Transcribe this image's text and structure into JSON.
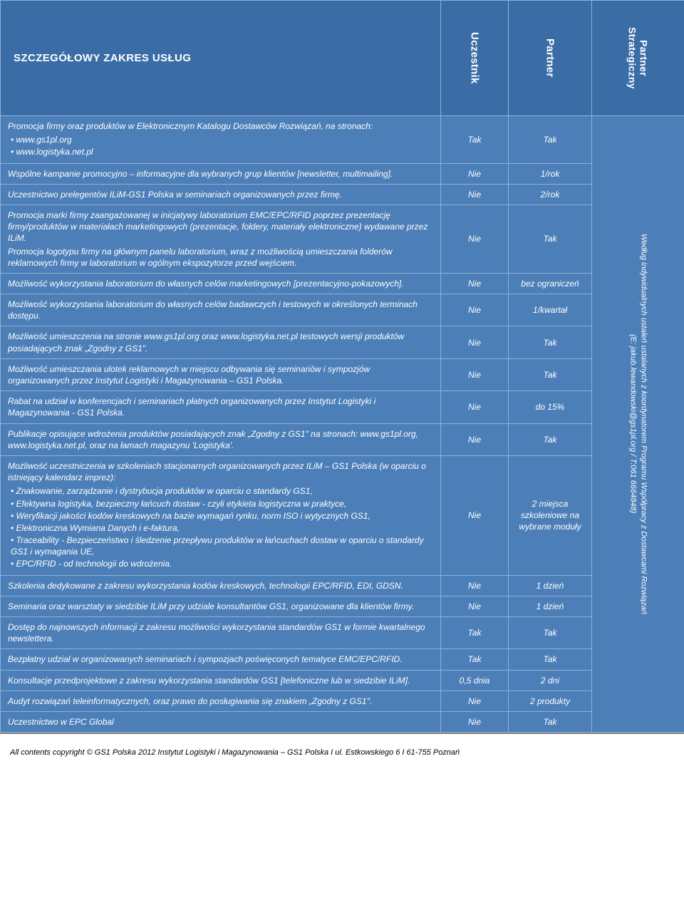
{
  "colors": {
    "header_bg": "#3a6da6",
    "body_bg": "#4c7fb8",
    "border": "#8fb1d2",
    "text": "#ffffff",
    "footer_text": "#000000"
  },
  "header": {
    "title": "SZCZEGÓŁOWY ZAKRES USŁUG",
    "col2": "Uczestnik",
    "col3": "Partner",
    "col4_l1": "Partner",
    "col4_l2": "Strategiczny"
  },
  "rows": [
    {
      "intro": "Promocja firmy oraz produktów w Elektronicznym Katalogu Dostawców Rozwiązań, na stronach:",
      "bullets": [
        "www.gs1pl.org",
        "www.logistyka.net.pl"
      ],
      "c2": "Tak",
      "c3": "Tak"
    },
    {
      "desc": "Wspólne kampanie promocyjno – informacyjne dla wybranych grup klientów [newsletter, multimailing].",
      "c2": "Nie",
      "c3": "1/rok"
    },
    {
      "desc": "Uczestnictwo prelegentów ILiM-GS1 Polska w seminariach organizowanych przez firmę.",
      "c2": "Nie",
      "c3": "2/rok"
    },
    {
      "desc": "Promocja marki firmy zaangażowanej w inicjatywy laboratorium EMC/EPC/RFID poprzez prezentację firmy/produktów w materiałach marketingowych (prezentacje, foldery, materiały elektroniczne) wydawane przez ILiM.\nPromocja logotypu firmy na głównym panelu laboratorium, wraz z możliwością umieszczania folderów reklamowych firmy w laboratorium w ogólnym ekspozytorze przed wejściem.",
      "c2": "Nie",
      "c3": "Tak"
    },
    {
      "desc": "Możliwość wykorzystania laboratorium do własnych celów marketingowych [prezentacyjno-pokazowych].",
      "c2": "Nie",
      "c3": "bez ograniczeń"
    },
    {
      "desc": "Możliwość wykorzystania laboratorium do własnych celów badawczych i testowych w określonych terminach dostępu.",
      "c2": "Nie",
      "c3": "1/kwartał"
    },
    {
      "desc": "Możliwość umieszczenia na stronie www.gs1pl.org oraz www.logistyka.net.pl testowych wersji produktów posiadających znak „Zgodny z GS1\".",
      "c2": "Nie",
      "c3": "Tak"
    },
    {
      "desc": "Możliwość umieszczania ulotek reklamowych w miejscu odbywania się seminariów i sympozjów organizowanych przez Instytut Logistyki i Magazynowania – GS1 Polska.",
      "c2": "Nie",
      "c3": "Tak"
    },
    {
      "desc": "Rabat na udział w konferencjach i seminariach płatnych organizowanych przez Instytut Logistyki i Magazynowania - GS1 Polska.",
      "c2": "Nie",
      "c3": "do 15%"
    },
    {
      "desc": "Publikacje opisujące wdrożenia produktów posiadających znak „Zgodny z GS1\" na stronach: www.gs1pl.org, www.logistyka.net.pl, oraz na łamach magazynu 'Logistyka'.",
      "c2": "Nie",
      "c3": "Tak"
    },
    {
      "intro": "Możliwość uczestniczenia w szkoleniach stacjonarnych organizowanych przez ILiM – GS1 Polska (w oparciu o istniejący kalendarz imprez):",
      "bullets": [
        "Znakowanie, zarządzanie i dystrybucja produktów w oparciu o standardy GS1,",
        "Efektywna logistyka, bezpieczny łańcuch dostaw - czyli etykieta logistyczna w praktyce,",
        "Weryfikacji jakości kodów kreskowych na bazie wymagań rynku, norm ISO i wytycznych GS1,",
        "Elektroniczna Wymiana Danych i e-faktura,",
        "Traceability - Bezpieczeństwo i śledzenie przepływu produktów w łańcuchach dostaw w oparciu o standardy GS1 i wymagania UE,",
        "EPC/RFID - od technologii do wdrożenia."
      ],
      "c2": "Nie",
      "c3": "2 miejsca szkoleniowe na wybrane moduły"
    },
    {
      "desc": "Szkolenia dedykowane z zakresu wykorzystania kodów kreskowych, technologii EPC/RFID, EDI, GDSN.",
      "c2": "Nie",
      "c3": "1 dzień"
    },
    {
      "desc": "Seminaria oraz warsztaty  w siedzibie ILiM przy udziale konsultantów GS1, organizowane dla klientów firmy.",
      "c2": "Nie",
      "c3": "1 dzień"
    },
    {
      "desc": "Dostęp do najnowszych informacji z zakresu możliwości wykorzystania standardów GS1 w formie kwartalnego newslettera.",
      "c2": "Tak",
      "c3": "Tak"
    },
    {
      "desc": "Bezpłatny udział w organizowanych seminariach i sympozjach poświęconych tematyce EMC/EPC/RFID.",
      "c2": "Tak",
      "c3": "Tak"
    },
    {
      "desc": "Konsultacje przedprojektowe z zakresu wykorzystania standardów GS1 [telefoniczne lub w siedzibie ILiM].",
      "c2": "0,5 dnia",
      "c3": "2 dni"
    },
    {
      "desc": "Audyt rozwiązań teleinformatycznych, oraz prawo do posługiwania się znakiem „Zgodny z GS1\".",
      "c2": "Nie",
      "c3": "2 produkty"
    },
    {
      "desc": "Uczestnictwo w EPC Global",
      "c2": "Nie",
      "c3": "Tak"
    }
  ],
  "side": {
    "line1": "Według indywidualnych ustaleń ustalanych z koordynatorem Programu Współpracy z Dostawcami Rozwiązań",
    "line2": "(E: jakub.lewandowski@gs1pl.org / T:061 6664848)"
  },
  "footer": "All contents copyright © GS1 Polska 2012 Instytut Logistyki i Magazynowania – GS1 Polska I ul. Estkowskiego 6 I 61-755 Poznań"
}
